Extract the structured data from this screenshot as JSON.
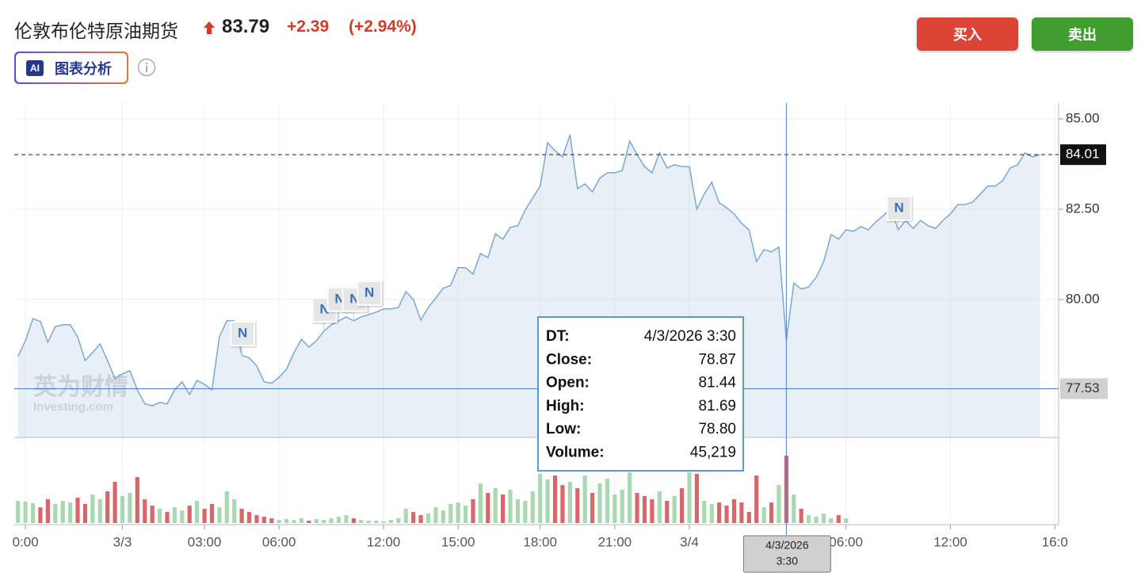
{
  "header": {
    "title": "伦敦布伦特原油期货",
    "price": "83.79",
    "change": "+2.39",
    "change_pct": "(+2.94%)",
    "buy": "买入",
    "sell": "卖出",
    "ai_icon": "AI",
    "ai_label": "图表分析"
  },
  "chart_data": {
    "type": "line",
    "color": "#7ba7d2",
    "watermark": [
      "英为财情",
      "Investing.com"
    ],
    "values": [
      78.42,
      78.86,
      79.47,
      79.39,
      78.82,
      79.25,
      79.3,
      79.3,
      78.97,
      78.31,
      78.53,
      78.77,
      78.31,
      77.81,
      77.94,
      78.03,
      77.5,
      77.11,
      77.06,
      77.15,
      77.11,
      77.5,
      77.72,
      77.37,
      77.76,
      77.65,
      77.5,
      78.97,
      79.41,
      79.41,
      78.46,
      78.38,
      78.16,
      77.72,
      77.68,
      77.85,
      78.07,
      78.53,
      78.9,
      78.68,
      78.86,
      79.12,
      79.3,
      79.41,
      79.52,
      79.41,
      79.52,
      79.58,
      79.65,
      79.74,
      79.74,
      79.78,
      80.22,
      80.0,
      79.43,
      79.78,
      80.04,
      80.31,
      80.39,
      80.88,
      80.88,
      80.7,
      81.27,
      81.16,
      81.82,
      81.67,
      82.0,
      82.04,
      82.48,
      82.81,
      83.14,
      84.34,
      84.12,
      83.95,
      84.56,
      83.07,
      83.2,
      82.98,
      83.36,
      83.51,
      83.51,
      83.57,
      84.39,
      84.01,
      83.68,
      83.51,
      84.06,
      83.64,
      83.73,
      83.68,
      83.68,
      82.5,
      82.92,
      83.25,
      82.68,
      82.54,
      82.37,
      82.11,
      81.93,
      81.05,
      81.38,
      81.32,
      81.45,
      78.87,
      80.46,
      80.29,
      80.35,
      80.61,
      81.05,
      81.8,
      81.67,
      81.93,
      81.89,
      82.02,
      81.93,
      82.15,
      82.32,
      82.54,
      81.93,
      82.19,
      81.97,
      82.19,
      82.04,
      81.97,
      82.19,
      82.37,
      82.63,
      82.63,
      82.7,
      82.92,
      83.14,
      83.14,
      83.29,
      83.64,
      83.73,
      84.06,
      83.95,
      84.01
    ],
    "volume": [
      14900,
      14400,
      13300,
      10600,
      16000,
      12800,
      14900,
      13800,
      17000,
      12800,
      19200,
      16000,
      21300,
      27700,
      18100,
      20200,
      30900,
      16000,
      11700,
      9600,
      7400,
      10600,
      8500,
      11700,
      14900,
      9600,
      12800,
      10600,
      21300,
      16000,
      9600,
      7400,
      5300,
      4300,
      3200,
      2100,
      2700,
      2100,
      3200,
      1600,
      2700,
      2100,
      3200,
      4300,
      5300,
      3200,
      2100,
      1600,
      1600,
      1100,
      2100,
      3200,
      9600,
      7400,
      5300,
      6400,
      10600,
      8500,
      12800,
      13800,
      11700,
      16000,
      26600,
      20200,
      23400,
      19200,
      22300,
      16000,
      14900,
      21300,
      33000,
      29300,
      31900,
      25500,
      27700,
      23400,
      31900,
      20200,
      26600,
      29800,
      19200,
      22300,
      34000,
      20200,
      18100,
      16000,
      21300,
      14900,
      18100,
      23400,
      34000,
      33000,
      14900,
      12800,
      13800,
      11700,
      16000,
      13800,
      7400,
      31900,
      10600,
      13800,
      25500,
      45219,
      19200,
      9600,
      5300,
      4300,
      6400,
      3200,
      5300,
      3200,
      null,
      null,
      null,
      null,
      null,
      null,
      null,
      null,
      null,
      null,
      null,
      null,
      null,
      null,
      null,
      null,
      null,
      null,
      null,
      null,
      null,
      null,
      null,
      null,
      null,
      null
    ],
    "volume_colors": {
      "up": "#a9d8b1",
      "down": "#d8676b"
    },
    "volume_ylim": [
      0,
      57450
    ],
    "xlim": [
      -0.5,
      139.5
    ],
    "xticks": [
      {
        "value": 1,
        "label": "0:00"
      },
      {
        "value": 14,
        "label": "3/3"
      },
      {
        "value": 25,
        "label": "03:00"
      },
      {
        "value": 35,
        "label": "06:00"
      },
      {
        "value": 49,
        "label": "12:00"
      },
      {
        "value": 59,
        "label": "15:00"
      },
      {
        "value": 70,
        "label": "18:00"
      },
      {
        "value": 80,
        "label": "21:00"
      },
      {
        "value": 90,
        "label": "3/4"
      },
      {
        "value": 111,
        "label": "06:00"
      },
      {
        "value": 125,
        "label": "12:00"
      },
      {
        "value": 139,
        "label": "16:0"
      }
    ],
    "ylim": [
      76.18,
      85.44
    ],
    "yticks": [
      {
        "value": 80,
        "label": "80.00"
      },
      {
        "value": 82.5,
        "label": "82.50"
      },
      {
        "value": 85,
        "label": "85.00"
      }
    ],
    "grid": true,
    "last_price": 84.01,
    "crosshair": {
      "index": 103,
      "price": 77.53,
      "time_label": [
        "4/3/2026",
        "3:30"
      ]
    },
    "events": [
      {
        "index": 30,
        "label": "N"
      },
      {
        "index": 41,
        "label": "N"
      },
      {
        "index": 43,
        "label": "N"
      },
      {
        "index": 45,
        "label": "N"
      },
      {
        "index": 47,
        "label": "N"
      },
      {
        "index": 118,
        "label": "N"
      }
    ],
    "tooltip": {
      "rows": [
        {
          "label": "DT:",
          "value": "4/3/2026 3:30"
        },
        {
          "label": "Close:",
          "value": "78.87"
        },
        {
          "label": "Open:",
          "value": "81.44"
        },
        {
          "label": "High:",
          "value": "81.69"
        },
        {
          "label": "Low:",
          "value": "78.80"
        },
        {
          "label": "Volume:",
          "value": "45,219"
        }
      ]
    }
  }
}
